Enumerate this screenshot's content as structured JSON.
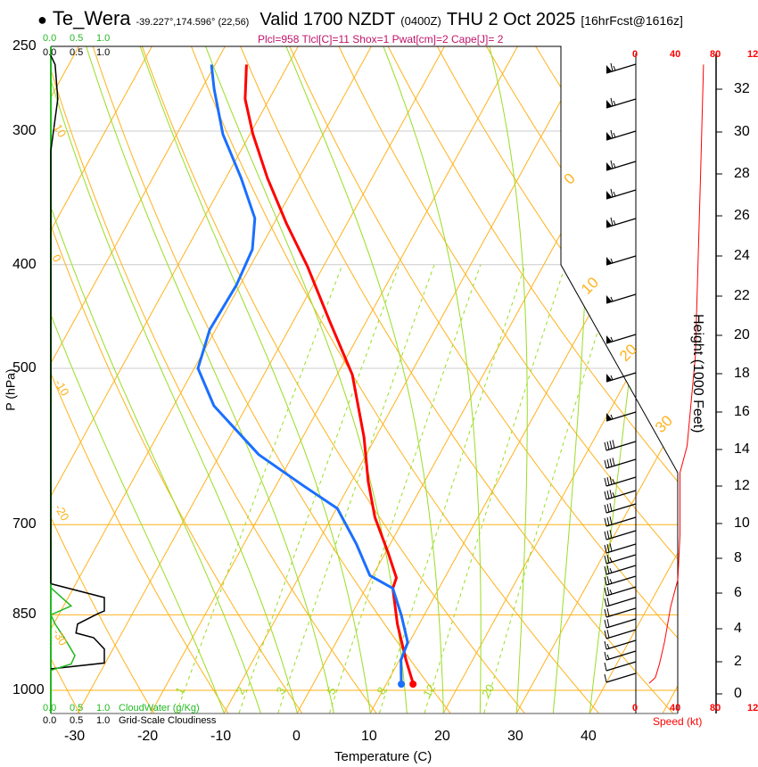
{
  "header": {
    "bullet": "●",
    "station": "Te_Wera",
    "coords": "-39.227°,174.596° (22,56)",
    "valid": "Valid 1700 NZDT",
    "utc": "(0400Z)",
    "date": "THU 2 Oct 2025",
    "forecast": "[16hrFcst@1616z]",
    "params": "Plcl=958 Tlcl[C]=11 Shox=1 Pwat[cm]=2 Cape[J]= 2"
  },
  "colors": {
    "temperature": "#ff0000",
    "dewpoint": "#1a6fff",
    "isotherm": "#ffb21a",
    "moist_adiabat": "#99dd22",
    "mixing_ratio": "#99dd22",
    "cloud_water": "#22b822",
    "params": "#c0136a"
  },
  "chart_data": {
    "type": "line",
    "subtype": "skew-T log-P",
    "xlabel": "Temperature (C)",
    "ylabel": "P (hPa)",
    "xticks": [
      "-30",
      "-20",
      "-10",
      "0",
      "10",
      "20",
      "30",
      "40"
    ],
    "yticks": [
      "250",
      "300",
      "400",
      "500",
      "700",
      "850",
      "1000"
    ],
    "ylim": [
      1050,
      250
    ],
    "isotherm_labels_left": [
      "10",
      "0",
      "-10",
      "-20",
      "-30"
    ],
    "isotherm_labels_right": [
      "0",
      "10",
      "20",
      "30"
    ],
    "mixing_ratio_labels": [
      "1",
      "2",
      "3",
      "5",
      "8",
      "12",
      "20"
    ],
    "series": [
      {
        "name": "Temperature",
        "p": [
          260,
          280,
          302,
          332,
          366,
          402,
          452,
          507,
          580,
          638,
          689,
          744,
          785,
          803,
          867,
          937,
          985
        ],
        "t": [
          -55.7,
          -53.3,
          -49.6,
          -44.3,
          -38.3,
          -32.1,
          -25.0,
          -17.9,
          -11.6,
          -7.7,
          -4.1,
          0.4,
          3.4,
          3.7,
          7.0,
          10.9,
          13.6
        ]
      },
      {
        "name": "Dewpoint",
        "p": [
          260,
          274,
          302,
          332,
          362,
          387,
          418,
          460,
          500,
          542,
          602,
          644,
          676,
          730,
          781,
          803,
          851,
          902,
          937,
          985
        ],
        "t": [
          -60.5,
          -58.3,
          -53.7,
          -47.9,
          -43.0,
          -41.0,
          -40.5,
          -40.8,
          -39.5,
          -34.5,
          -24.7,
          -16.2,
          -9.9,
          -4.6,
          -0.4,
          3.7,
          6.9,
          9.8,
          10.2,
          12.0
        ]
      }
    ],
    "cloud_panel": {
      "top_scale_green": [
        "0.0",
        "0.5",
        "1.0"
      ],
      "top_scale_black": [
        "0.0",
        "0.5",
        "1.0"
      ],
      "bottom_scale_green": [
        "0.0",
        "0.5",
        "1.0"
      ],
      "bottom_scale_black": [
        "0.0",
        "0.5",
        "1.0"
      ],
      "cloudwater_label": "CloudWater (g/Kg)",
      "cloudiness_label": "Grid-Scale Cloudiness",
      "cloudiness": {
        "p": [
          255,
          260,
          280,
          313,
          795,
          819,
          843,
          848,
          867,
          884,
          893,
          915,
          943,
          955
        ],
        "v": [
          0.0,
          0.08,
          0.13,
          0.0,
          0.0,
          1.0,
          1.0,
          0.88,
          0.5,
          0.47,
          0.8,
          1.0,
          1.0,
          0.0
        ]
      },
      "cloud_water": {
        "p": [
          795,
          802,
          834,
          850,
          867,
          893,
          928,
          945,
          958
        ],
        "v": [
          0.0,
          0.0,
          0.38,
          0.0,
          0.08,
          0.25,
          0.45,
          0.38,
          0.0
        ]
      }
    },
    "wind": {
      "speed_label": "Speed (kt)",
      "speed_ticks": [
        "0",
        "40",
        "80",
        "12"
      ],
      "speed_profile": {
        "p": [
          260,
          332,
          488,
          591,
          626,
          716,
          788,
          835,
          901,
          945,
          973,
          985
        ],
        "kt": [
          66,
          63,
          58,
          50,
          43,
          43,
          41,
          34,
          28,
          23,
          19,
          13
        ]
      },
      "barbs_kt": [
        65,
        65,
        65,
        65,
        65,
        65,
        55,
        55,
        55,
        55,
        55,
        40,
        40,
        35,
        35,
        30,
        30,
        30,
        30,
        25,
        25,
        25,
        25,
        20,
        20,
        20,
        20,
        15,
        15,
        10,
        10
      ]
    },
    "height_axis": {
      "label": "Height (1000 Feet)",
      "ticks": [
        "32",
        "30",
        "28",
        "26",
        "24",
        "22",
        "20",
        "18",
        "16",
        "14",
        "12",
        "10",
        "8",
        "6",
        "4",
        "2",
        "0"
      ]
    }
  }
}
